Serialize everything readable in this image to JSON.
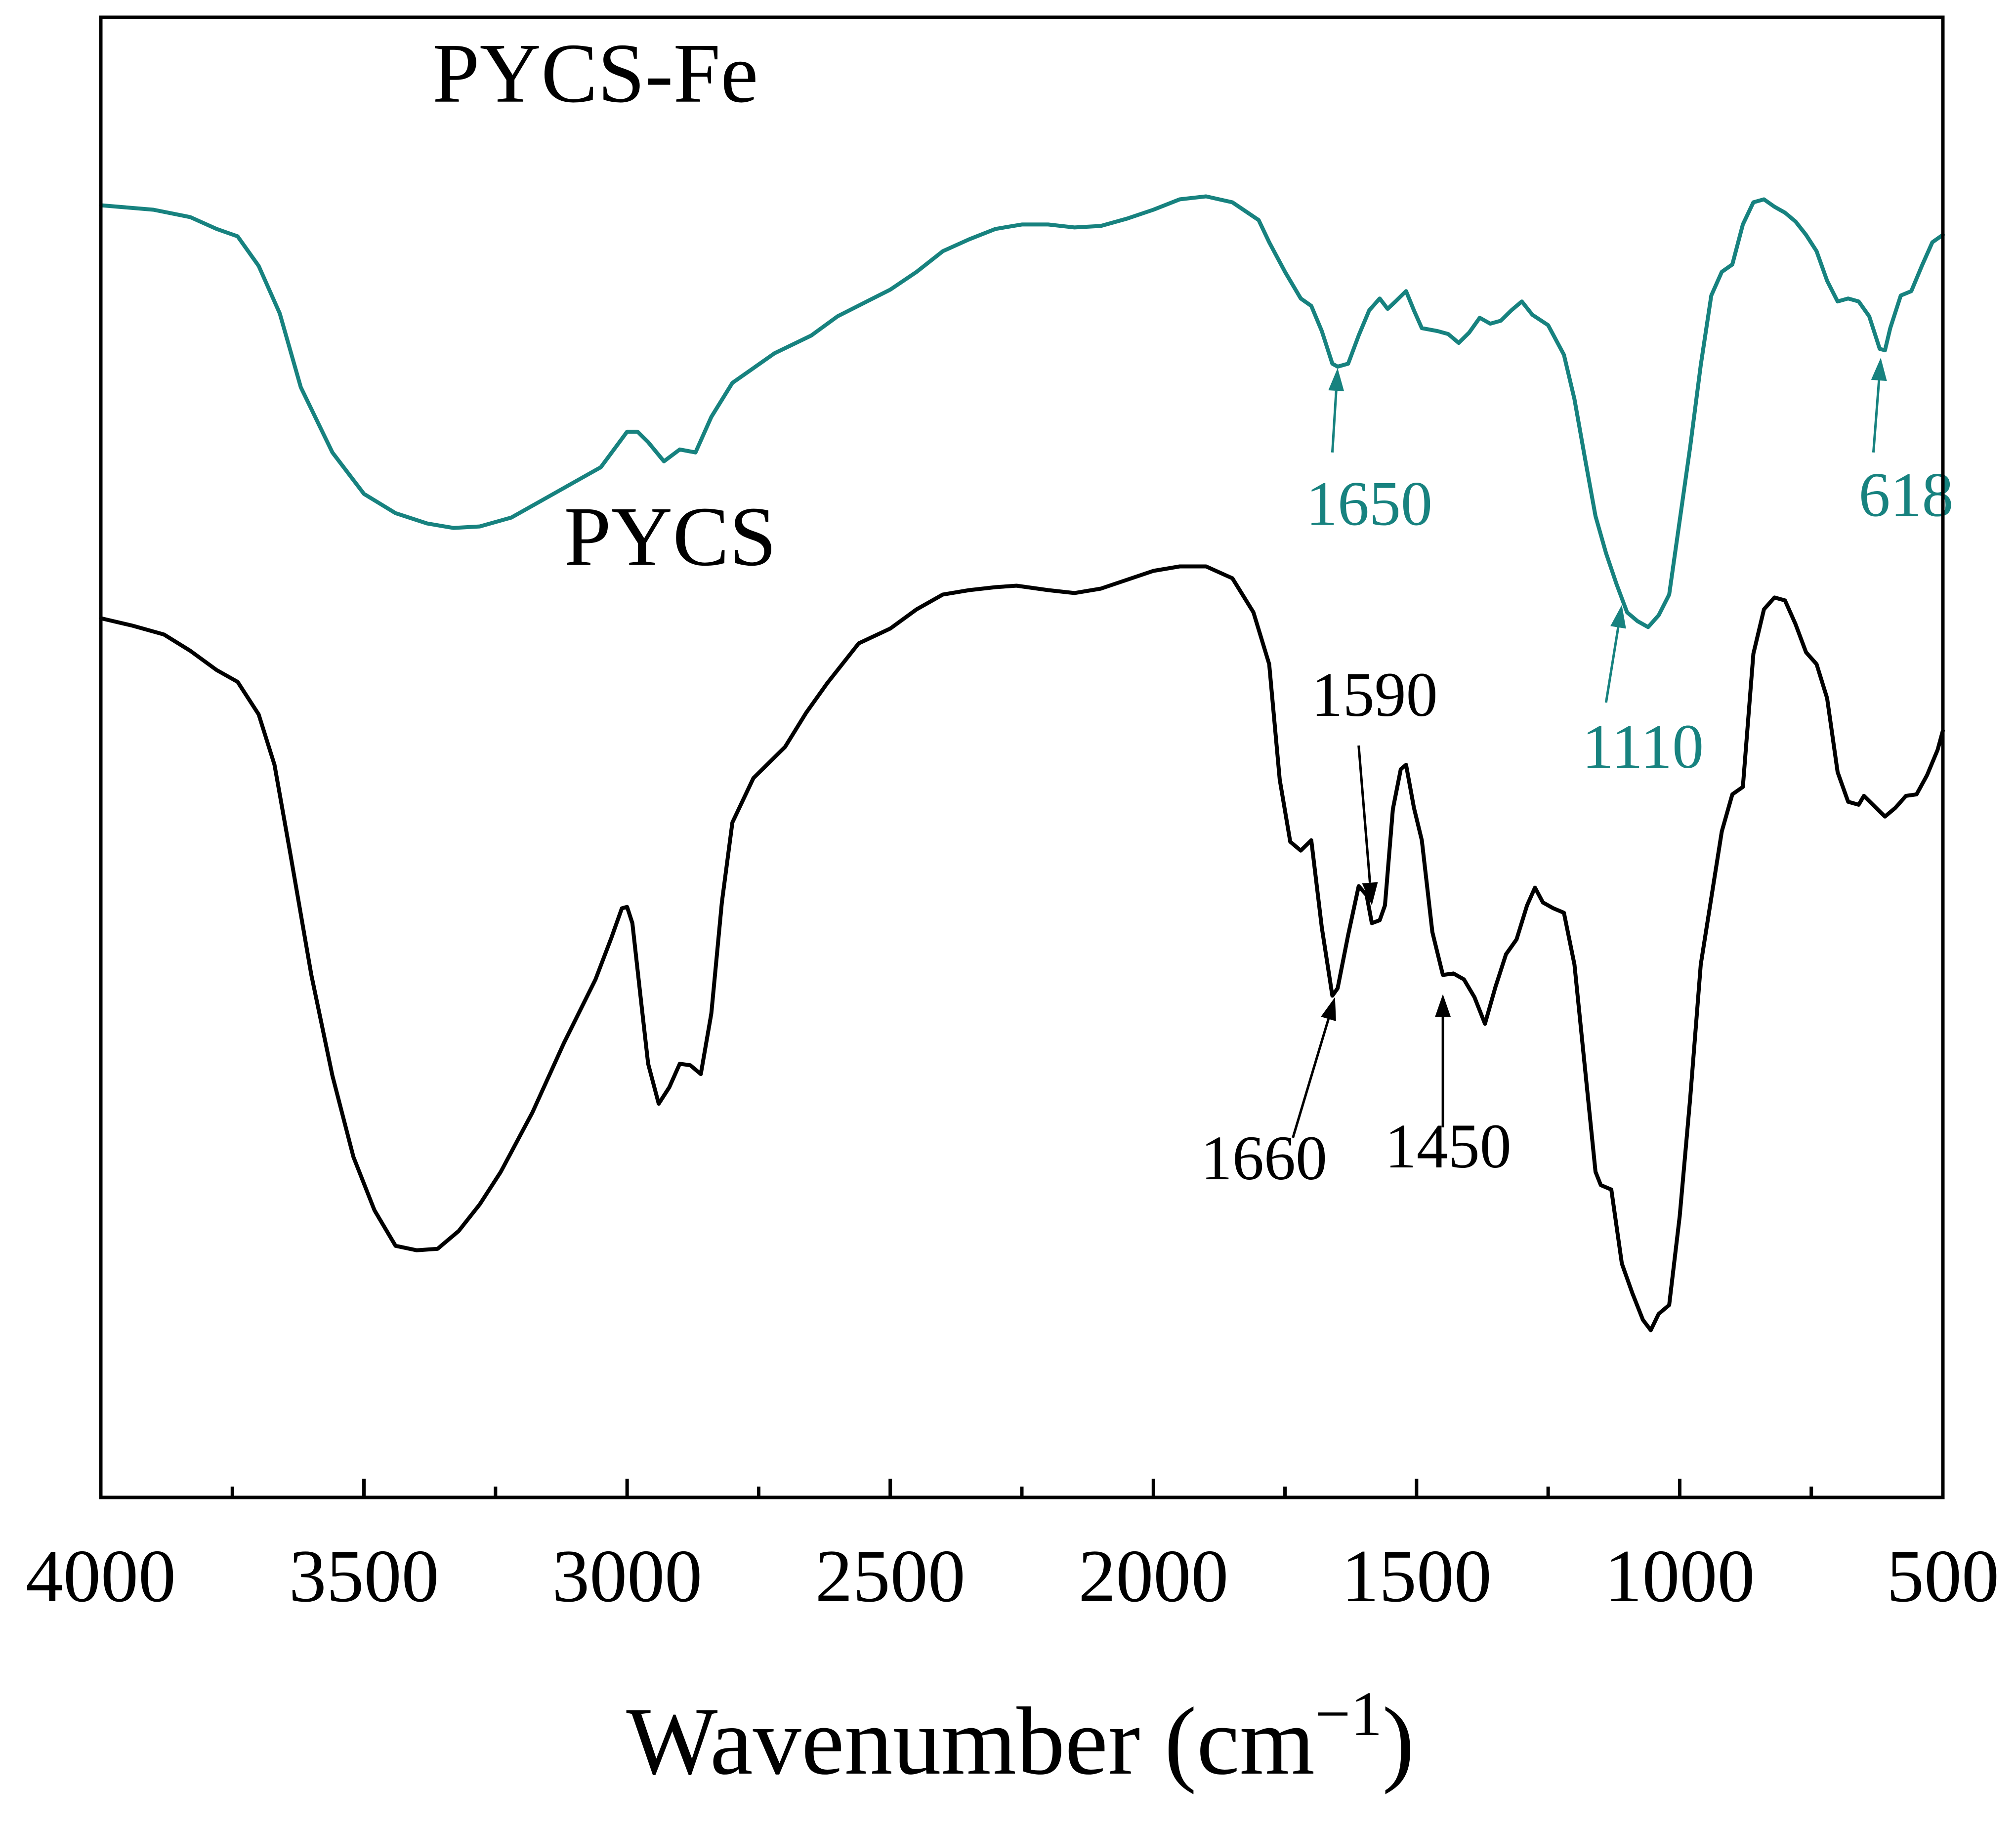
{
  "chart_data": {
    "type": "line",
    "title": "",
    "xlabel": "Wavenumber (cm",
    "xlabel_sup": "−1",
    "xlabel_close": ")",
    "ylabel": "",
    "xlim": [
      4000,
      500
    ],
    "ylim": [
      0,
      100
    ],
    "x_ticks": [
      "4000",
      "3500",
      "3000",
      "2500",
      "2000",
      "1500",
      "1000",
      "500"
    ],
    "x_tick_values": [
      4000,
      3500,
      3000,
      2500,
      2000,
      1500,
      1000,
      500
    ],
    "series": [
      {
        "name": "PYCS-Fe",
        "color": "#17827f",
        "label": "PYCS-Fe",
        "label_x": 3370,
        "label_y": 94.3,
        "points": [
          [
            4000,
            87.3
          ],
          [
            3900,
            87.0
          ],
          [
            3830,
            86.5
          ],
          [
            3780,
            85.7
          ],
          [
            3740,
            85.2
          ],
          [
            3700,
            83.2
          ],
          [
            3660,
            80.0
          ],
          [
            3620,
            75.0
          ],
          [
            3560,
            70.6
          ],
          [
            3500,
            67.8
          ],
          [
            3440,
            66.5
          ],
          [
            3380,
            65.8
          ],
          [
            3330,
            65.5
          ],
          [
            3280,
            65.6
          ],
          [
            3220,
            66.2
          ],
          [
            3160,
            67.4
          ],
          [
            3100,
            68.6
          ],
          [
            3050,
            69.6
          ],
          [
            3000,
            72.0
          ],
          [
            2980,
            72.0
          ],
          [
            2960,
            71.3
          ],
          [
            2930,
            70.0
          ],
          [
            2900,
            70.8
          ],
          [
            2870,
            70.6
          ],
          [
            2840,
            73.0
          ],
          [
            2800,
            75.3
          ],
          [
            2760,
            76.3
          ],
          [
            2720,
            77.3
          ],
          [
            2650,
            78.5
          ],
          [
            2600,
            79.8
          ],
          [
            2550,
            80.7
          ],
          [
            2500,
            81.6
          ],
          [
            2450,
            82.8
          ],
          [
            2400,
            84.2
          ],
          [
            2350,
            85.0
          ],
          [
            2300,
            85.7
          ],
          [
            2250,
            86.0
          ],
          [
            2200,
            86.0
          ],
          [
            2150,
            85.8
          ],
          [
            2100,
            85.9
          ],
          [
            2050,
            86.4
          ],
          [
            2000,
            87.0
          ],
          [
            1950,
            87.7
          ],
          [
            1900,
            87.9
          ],
          [
            1850,
            87.5
          ],
          [
            1800,
            86.3
          ],
          [
            1780,
            84.8
          ],
          [
            1750,
            82.8
          ],
          [
            1720,
            81.0
          ],
          [
            1700,
            80.5
          ],
          [
            1680,
            78.8
          ],
          [
            1660,
            76.6
          ],
          [
            1650,
            76.4
          ],
          [
            1630,
            76.6
          ],
          [
            1610,
            78.5
          ],
          [
            1590,
            80.2
          ],
          [
            1570,
            81.0
          ],
          [
            1555,
            80.3
          ],
          [
            1540,
            80.8
          ],
          [
            1520,
            81.5
          ],
          [
            1505,
            80.2
          ],
          [
            1490,
            79.0
          ],
          [
            1460,
            78.8
          ],
          [
            1440,
            78.6
          ],
          [
            1420,
            78.0
          ],
          [
            1400,
            78.7
          ],
          [
            1380,
            79.7
          ],
          [
            1360,
            79.3
          ],
          [
            1340,
            79.5
          ],
          [
            1320,
            80.2
          ],
          [
            1300,
            80.8
          ],
          [
            1280,
            79.9
          ],
          [
            1250,
            79.2
          ],
          [
            1220,
            77.2
          ],
          [
            1200,
            74.2
          ],
          [
            1180,
            70.2
          ],
          [
            1160,
            66.3
          ],
          [
            1140,
            63.8
          ],
          [
            1120,
            61.7
          ],
          [
            1100,
            59.8
          ],
          [
            1080,
            59.2
          ],
          [
            1060,
            58.8
          ],
          [
            1040,
            59.6
          ],
          [
            1020,
            61.0
          ],
          [
            1000,
            66.0
          ],
          [
            980,
            71.0
          ],
          [
            960,
            76.5
          ],
          [
            940,
            81.2
          ],
          [
            920,
            82.8
          ],
          [
            900,
            83.3
          ],
          [
            880,
            86.0
          ],
          [
            860,
            87.5
          ],
          [
            840,
            87.7
          ],
          [
            820,
            87.2
          ],
          [
            800,
            86.8
          ],
          [
            780,
            86.2
          ],
          [
            760,
            85.3
          ],
          [
            740,
            84.2
          ],
          [
            720,
            82.2
          ],
          [
            700,
            80.8
          ],
          [
            680,
            81.0
          ],
          [
            660,
            80.8
          ],
          [
            640,
            79.8
          ],
          [
            620,
            77.6
          ],
          [
            610,
            77.5
          ],
          [
            600,
            79.0
          ],
          [
            580,
            81.2
          ],
          [
            560,
            81.5
          ],
          [
            540,
            83.2
          ],
          [
            520,
            84.8
          ],
          [
            500,
            85.3
          ]
        ]
      },
      {
        "name": "PYCS",
        "color": "#000000",
        "label": "PYCS",
        "label_x": 3120,
        "label_y": 63.0,
        "points": [
          [
            4000,
            59.4
          ],
          [
            3940,
            58.9
          ],
          [
            3880,
            58.3
          ],
          [
            3830,
            57.2
          ],
          [
            3780,
            55.9
          ],
          [
            3740,
            55.1
          ],
          [
            3700,
            52.9
          ],
          [
            3670,
            49.5
          ],
          [
            3640,
            43.5
          ],
          [
            3600,
            35.3
          ],
          [
            3560,
            28.5
          ],
          [
            3520,
            23.0
          ],
          [
            3480,
            19.4
          ],
          [
            3440,
            17.0
          ],
          [
            3400,
            16.7
          ],
          [
            3360,
            16.8
          ],
          [
            3320,
            18.0
          ],
          [
            3280,
            19.8
          ],
          [
            3240,
            22.0
          ],
          [
            3180,
            26.0
          ],
          [
            3120,
            30.7
          ],
          [
            3060,
            35.0
          ],
          [
            3030,
            37.8
          ],
          [
            3010,
            39.8
          ],
          [
            3000,
            39.9
          ],
          [
            2990,
            38.8
          ],
          [
            2975,
            34.0
          ],
          [
            2960,
            29.3
          ],
          [
            2940,
            26.6
          ],
          [
            2920,
            27.7
          ],
          [
            2900,
            29.3
          ],
          [
            2880,
            29.2
          ],
          [
            2860,
            28.6
          ],
          [
            2840,
            32.7
          ],
          [
            2820,
            40.2
          ],
          [
            2800,
            45.6
          ],
          [
            2760,
            48.6
          ],
          [
            2700,
            50.7
          ],
          [
            2660,
            53.0
          ],
          [
            2620,
            55.0
          ],
          [
            2560,
            57.7
          ],
          [
            2500,
            58.7
          ],
          [
            2450,
            60.0
          ],
          [
            2400,
            61.0
          ],
          [
            2350,
            61.3
          ],
          [
            2300,
            61.5
          ],
          [
            2260,
            61.6
          ],
          [
            2200,
            61.3
          ],
          [
            2150,
            61.1
          ],
          [
            2100,
            61.4
          ],
          [
            2050,
            62.0
          ],
          [
            2000,
            62.6
          ],
          [
            1950,
            62.9
          ],
          [
            1900,
            62.9
          ],
          [
            1850,
            62.1
          ],
          [
            1810,
            59.8
          ],
          [
            1780,
            56.3
          ],
          [
            1760,
            48.5
          ],
          [
            1740,
            44.3
          ],
          [
            1720,
            43.7
          ],
          [
            1700,
            44.4
          ],
          [
            1680,
            38.5
          ],
          [
            1660,
            33.9
          ],
          [
            1650,
            34.4
          ],
          [
            1630,
            38.0
          ],
          [
            1610,
            41.3
          ],
          [
            1595,
            40.7
          ],
          [
            1585,
            38.8
          ],
          [
            1570,
            39.0
          ],
          [
            1560,
            40.0
          ],
          [
            1545,
            46.5
          ],
          [
            1530,
            49.2
          ],
          [
            1520,
            49.5
          ],
          [
            1505,
            46.6
          ],
          [
            1490,
            44.4
          ],
          [
            1470,
            38.2
          ],
          [
            1450,
            35.3
          ],
          [
            1430,
            35.4
          ],
          [
            1410,
            35.0
          ],
          [
            1390,
            33.8
          ],
          [
            1370,
            32.0
          ],
          [
            1350,
            34.5
          ],
          [
            1330,
            36.7
          ],
          [
            1310,
            37.7
          ],
          [
            1290,
            40.0
          ],
          [
            1275,
            41.2
          ],
          [
            1260,
            40.2
          ],
          [
            1240,
            39.8
          ],
          [
            1220,
            39.5
          ],
          [
            1200,
            36.0
          ],
          [
            1180,
            29.0
          ],
          [
            1160,
            22.0
          ],
          [
            1150,
            21.1
          ],
          [
            1130,
            20.8
          ],
          [
            1110,
            15.8
          ],
          [
            1090,
            13.8
          ],
          [
            1070,
            12.0
          ],
          [
            1055,
            11.3
          ],
          [
            1040,
            12.4
          ],
          [
            1020,
            13.0
          ],
          [
            1000,
            19.0
          ],
          [
            980,
            27.0
          ],
          [
            960,
            36.0
          ],
          [
            940,
            40.5
          ],
          [
            920,
            45.0
          ],
          [
            900,
            47.5
          ],
          [
            880,
            48.0
          ],
          [
            860,
            57.0
          ],
          [
            840,
            60.0
          ],
          [
            820,
            60.8
          ],
          [
            800,
            60.6
          ],
          [
            780,
            59.0
          ],
          [
            760,
            57.1
          ],
          [
            740,
            56.3
          ],
          [
            720,
            54.0
          ],
          [
            700,
            49.0
          ],
          [
            680,
            47.0
          ],
          [
            660,
            46.8
          ],
          [
            650,
            47.4
          ],
          [
            630,
            46.7
          ],
          [
            610,
            46.0
          ],
          [
            590,
            46.6
          ],
          [
            570,
            47.4
          ],
          [
            550,
            47.5
          ],
          [
            530,
            48.8
          ],
          [
            510,
            50.5
          ],
          [
            500,
            51.8
          ]
        ]
      }
    ],
    "annotations": [
      {
        "text": "1650",
        "series": "PYCS-Fe",
        "color": "#17827f",
        "tip_x": 1650,
        "tip_y": 76.3,
        "tail_x": 1660,
        "tail_y": 70.6,
        "label_x": 1590,
        "label_y": 65.7
      },
      {
        "text": "1110",
        "series": "PYCS-Fe",
        "color": "#17827f",
        "tip_x": 1110,
        "tip_y": 60.3,
        "tail_x": 1140,
        "tail_y": 53.7,
        "label_x": 1070,
        "label_y": 49.3
      },
      {
        "text": "618",
        "series": "PYCS-Fe",
        "color": "#17827f",
        "tip_x": 618,
        "tip_y": 77.0,
        "tail_x": 632,
        "tail_y": 70.6,
        "label_x": 570,
        "label_y": 66.3
      },
      {
        "text": "1590",
        "series": "PYCS",
        "color": "#000000",
        "tip_x": 1585,
        "tip_y": 40.0,
        "tail_x": 1610,
        "tail_y": 50.8,
        "label_x": 1580,
        "label_y": 52.8
      },
      {
        "text": "1660",
        "series": "PYCS",
        "color": "#000000",
        "tip_x": 1655,
        "tip_y": 33.8,
        "tail_x": 1735,
        "tail_y": 24.3,
        "label_x": 1790,
        "label_y": 21.5
      },
      {
        "text": "1450",
        "series": "PYCS",
        "color": "#000000",
        "tip_x": 1450,
        "tip_y": 34.0,
        "tail_x": 1450,
        "tail_y": 25.0,
        "label_x": 1440,
        "label_y": 22.3
      }
    ]
  }
}
